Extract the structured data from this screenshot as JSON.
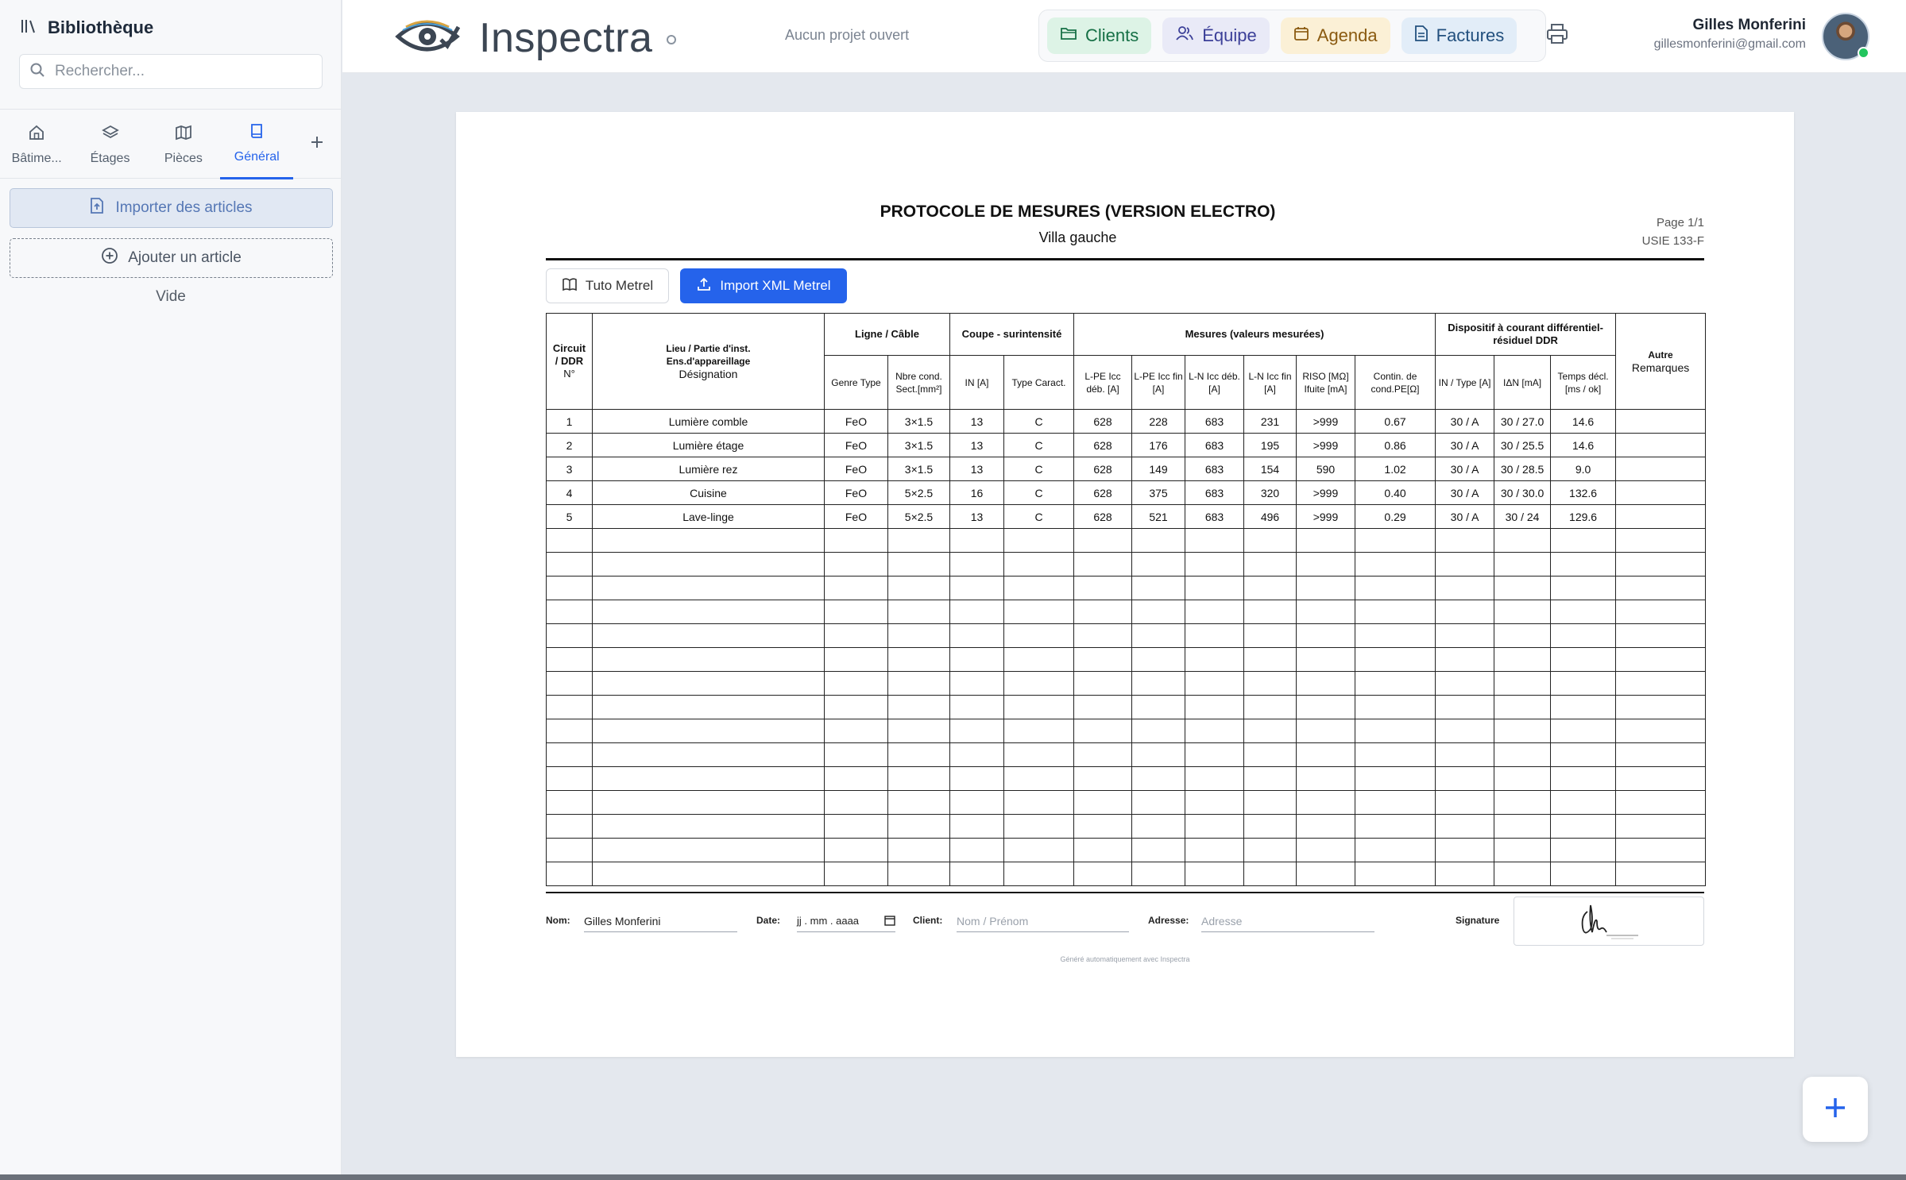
{
  "sidebar": {
    "title": "Bibliothèque",
    "search_placeholder": "Rechercher...",
    "tabs": [
      {
        "label": "Bâtime...",
        "icon": "home-icon",
        "active": false
      },
      {
        "label": "Étages",
        "icon": "layers-icon",
        "active": false
      },
      {
        "label": "Pièces",
        "icon": "map-icon",
        "active": false
      },
      {
        "label": "Général",
        "icon": "book-icon",
        "active": true
      }
    ],
    "import_label": "Importer des articles",
    "add_label": "Ajouter un article",
    "empty_label": "Vide"
  },
  "header": {
    "brand": "Inspectra",
    "project_status": "Aucun projet ouvert",
    "nav": [
      {
        "label": "Clients",
        "icon": "folder-icon"
      },
      {
        "label": "Équipe",
        "icon": "users-icon"
      },
      {
        "label": "Agenda",
        "icon": "calendar-icon"
      },
      {
        "label": "Factures",
        "icon": "file-text-icon"
      }
    ],
    "user": {
      "name": "Gilles Monferini",
      "email": "gillesmonferini@gmail.com"
    }
  },
  "document": {
    "title": "PROTOCOLE DE MESURES (VERSION ELECTRO)",
    "subtitle": "Villa gauche",
    "page": "Page 1/1",
    "code": "USIE 133-F",
    "tuto_label": "Tuto Metrel",
    "import_xml_label": "Import XML Metrel",
    "headers": {
      "circuit": [
        "Circuit",
        "/ DDR",
        "N°"
      ],
      "lieu": [
        "Lieu / Partie d'inst.",
        "Ens.d'appareillage",
        "Désignation"
      ],
      "ligne": "Ligne / Câble",
      "coupe": "Coupe - surintensité",
      "mesures": "Mesures (valeurs mesurées)",
      "ddr": "Dispositif à courant différentiel-résiduel DDR",
      "autre": [
        "Autre",
        "Remarques"
      ],
      "sub": [
        "Genre Type",
        "Nbre cond. Sect.[mm²]",
        "IN [A]",
        "Type Caract.",
        "L-PE Icc déb. [A]",
        "L-PE Icc fin [A]",
        "L-N Icc déb. [A]",
        "L-N Icc fin [A]",
        "RISO [MΩ] Ifuite [mA]",
        "Contin. de cond.PE[Ω]",
        "IN / Type [A]",
        "IΔN [mA]",
        "Temps décl. [ms / ok]"
      ]
    },
    "rows": [
      [
        "1",
        "Lumière comble",
        "FeO",
        "3×1.5",
        "13",
        "C",
        "628",
        "228",
        "683",
        "231",
        ">999",
        "0.67",
        "30 / A",
        "30 / 27.0",
        "14.6",
        ""
      ],
      [
        "2",
        "Lumière étage",
        "FeO",
        "3×1.5",
        "13",
        "C",
        "628",
        "176",
        "683",
        "195",
        ">999",
        "0.86",
        "30 / A",
        "30 / 25.5",
        "14.6",
        ""
      ],
      [
        "3",
        "Lumière rez",
        "FeO",
        "3×1.5",
        "13",
        "C",
        "628",
        "149",
        "683",
        "154",
        "590",
        "1.02",
        "30 / A",
        "30 / 28.5",
        "9.0",
        ""
      ],
      [
        "4",
        "Cuisine",
        "FeO",
        "5×2.5",
        "16",
        "C",
        "628",
        "375",
        "683",
        "320",
        ">999",
        "0.40",
        "30 / A",
        "30 / 30.0",
        "132.6",
        ""
      ],
      [
        "5",
        "Lave-linge",
        "FeO",
        "5×2.5",
        "13",
        "C",
        "628",
        "521",
        "683",
        "496",
        ">999",
        "0.29",
        "30 / A",
        "30 / 24",
        "129.6",
        ""
      ]
    ],
    "footer": {
      "name_label": "Nom:",
      "name_value": "Gilles Monferini",
      "date_label": "Date:",
      "date_placeholder": "jj . mm . aaaa",
      "client_label": "Client:",
      "client_placeholder": "Nom / Prénom",
      "address_label": "Adresse:",
      "address_placeholder": "Adresse",
      "signature_label": "Signature"
    },
    "generated_note": "Généré automatiquement avec Inspectra"
  },
  "colors": {
    "accent": "#2563eb",
    "sidebar_bg": "#f7f8fa",
    "canvas_bg": "#e4e8ee"
  }
}
